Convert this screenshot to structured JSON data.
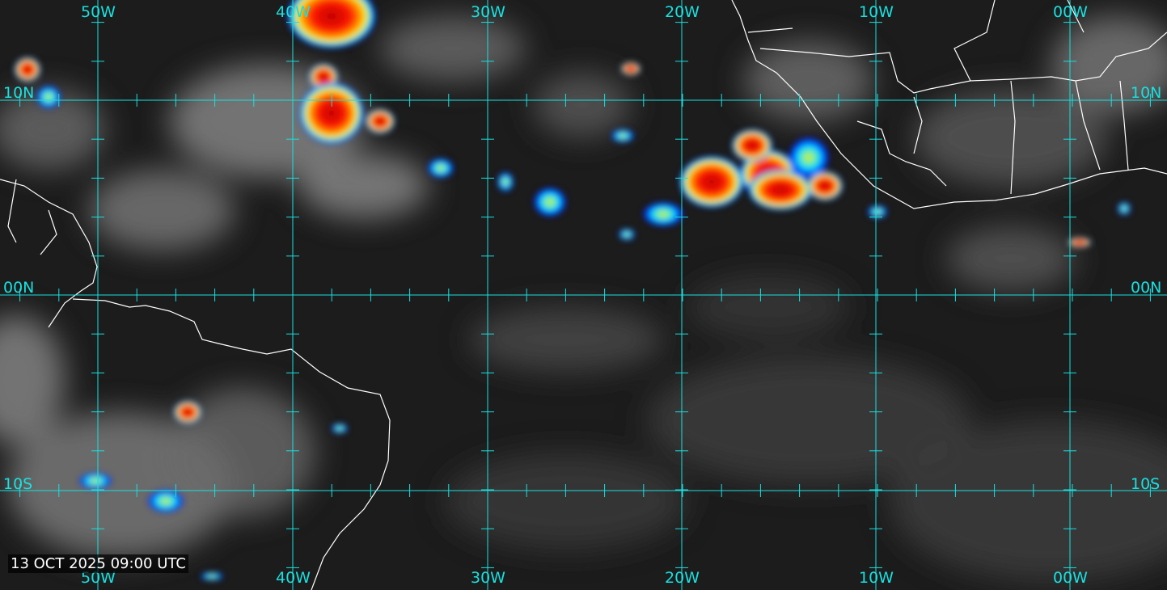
{
  "map": {
    "type": "infrared satellite image with enhanced color for cold cloud tops",
    "timestamp": "13 OCT 2025 09:00 UTC",
    "longitude_labels": [
      "50W",
      "40W",
      "30W",
      "20W",
      "10W",
      "00W"
    ],
    "latitude_labels": [
      "10N",
      "00N",
      "10S"
    ],
    "grid_color": "#19e0e0",
    "coastline_color": "#ffffff",
    "enhancement_colors": [
      "#0000ff",
      "#00ffff",
      "#ffff00",
      "#ff8000",
      "#e00000"
    ]
  }
}
